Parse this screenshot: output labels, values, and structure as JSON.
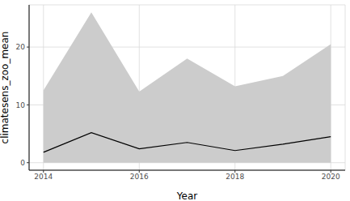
{
  "chart_data": {
    "type": "line",
    "x_label": "Year",
    "y_label": "climatesens_zoo_mean",
    "x": [
      2014,
      2015,
      2016,
      2017,
      2018,
      2019,
      2020
    ],
    "series": [
      {
        "type": "area",
        "color": "#cccccc",
        "lower": [
          0,
          0,
          0,
          0,
          0,
          0,
          0
        ],
        "upper": [
          12.5,
          26,
          12.3,
          18,
          13.2,
          15,
          20.5
        ]
      },
      {
        "type": "line",
        "color": "#000000",
        "values": [
          1.8,
          5.2,
          2.4,
          3.5,
          2.1,
          3.2,
          4.5
        ]
      }
    ],
    "xlim": [
      2013.7,
      2020.3
    ],
    "xticks": [
      2014,
      2016,
      2018,
      2020
    ],
    "ylim": [
      -1.3,
      27.3
    ],
    "yticks": [
      0,
      10,
      20
    ],
    "grid": true
  }
}
